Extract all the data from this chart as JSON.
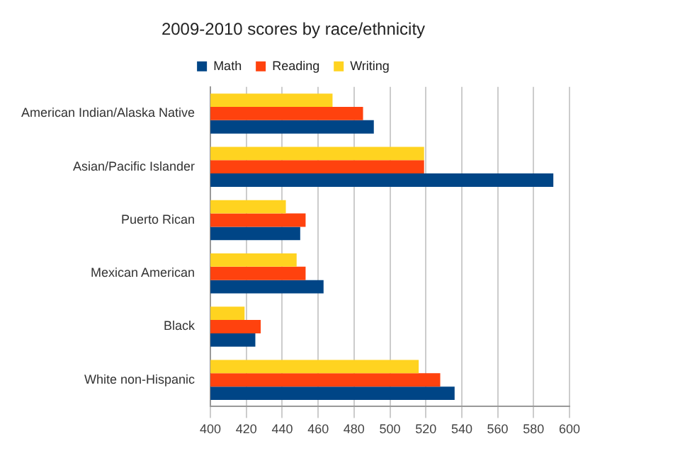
{
  "chart_data": {
    "type": "bar",
    "orientation": "horizontal",
    "title": "2009-2010 scores by race/ethnicity",
    "categories": [
      "American Indian/Alaska Native",
      "Asian/Pacific Islander",
      "Puerto Rican",
      "Mexican American",
      "Black",
      "White non-Hispanic"
    ],
    "series": [
      {
        "name": "Writing",
        "color": "#ffd320",
        "values": [
          468,
          519,
          442,
          448,
          419,
          516
        ]
      },
      {
        "name": "Reading",
        "color": "#ff420e",
        "values": [
          485,
          519,
          453,
          453,
          428,
          528
        ]
      },
      {
        "name": "Math",
        "color": "#004586",
        "values": [
          491,
          591,
          450,
          463,
          425,
          536
        ]
      }
    ],
    "xlim": [
      400,
      600
    ],
    "xticks": [
      400,
      420,
      440,
      460,
      480,
      500,
      520,
      540,
      560,
      580,
      600
    ],
    "grid": "x",
    "legend": "top"
  }
}
